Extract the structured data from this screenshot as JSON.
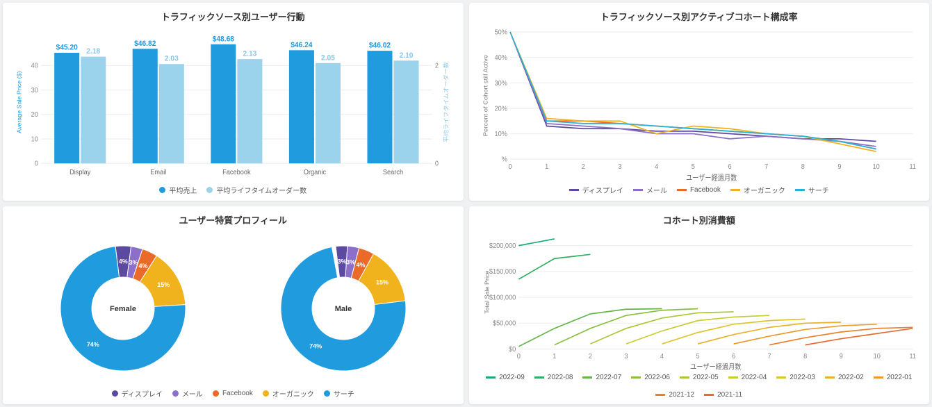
{
  "card1": {
    "title": "トラフィックソース別ユーザー行動",
    "type": "bar",
    "y1_label": "Average Sale Price ($)",
    "y2_label": "平均ライフタイムオーダー数",
    "y1_ticks": [
      0,
      10,
      20,
      30,
      40
    ],
    "y2_ticks": [
      0,
      2
    ],
    "y1_max": 50,
    "y2_max": 2.5,
    "categories": [
      "Display",
      "Email",
      "Facebook",
      "Organic",
      "Search"
    ],
    "series1": {
      "label": "平均売上",
      "color": "#1f9bde",
      "values": [
        45.2,
        46.82,
        48.68,
        46.24,
        46.02
      ],
      "value_labels": [
        "$45.20",
        "$46.82",
        "$48.68",
        "$46.24",
        "$46.02"
      ]
    },
    "series2": {
      "label": "平均ライフタイムオーダー数",
      "color": "#9cd3ec",
      "values": [
        2.18,
        2.03,
        2.13,
        2.05,
        2.1
      ],
      "value_labels": [
        "2.18",
        "2.03",
        "2.13",
        "2.05",
        "2.10"
      ]
    }
  },
  "card2": {
    "title": "トラフィックソース別アクティブコホート構成率",
    "type": "line",
    "y_label": "Percent of Cohort still Active",
    "x_label": "ユーザー経過月数",
    "y_ticks": [
      "%",
      "10%",
      "20%",
      "30%",
      "40%",
      "50%"
    ],
    "y_tick_vals": [
      0,
      10,
      20,
      30,
      40,
      50
    ],
    "x_ticks": [
      0,
      1,
      2,
      3,
      4,
      5,
      6,
      7,
      8,
      9,
      10,
      11
    ],
    "y_max": 50,
    "x_max": 11,
    "series": [
      {
        "label": "ディスプレイ",
        "color": "#5b4a9f",
        "values": [
          50,
          13,
          12,
          12,
          11,
          11,
          10,
          9,
          8,
          8,
          7,
          null
        ]
      },
      {
        "label": "メール",
        "color": "#8b6fc9",
        "values": [
          50,
          14,
          13,
          12,
          10,
          10,
          8,
          9,
          8,
          7,
          5,
          null
        ]
      },
      {
        "label": "Facebook",
        "color": "#ea6a2a",
        "values": [
          50,
          15,
          15,
          14,
          13,
          12,
          11,
          10,
          9,
          7,
          4,
          null
        ]
      },
      {
        "label": "オーガニック",
        "color": "#f0b31e",
        "values": [
          50,
          16,
          15,
          15,
          10,
          13,
          12,
          10,
          9,
          6,
          3,
          null
        ]
      },
      {
        "label": "サーチ",
        "color": "#26b3d6",
        "values": [
          50,
          15,
          14,
          14,
          13,
          12,
          11,
          10,
          9,
          7,
          4,
          null
        ]
      }
    ]
  },
  "card3": {
    "title": "ユーザー特質プロフィール",
    "type": "donut",
    "legend_labels": [
      "ディスプレイ",
      "メール",
      "Facebook",
      "オーガニック",
      "サーチ"
    ],
    "legend_colors": [
      "#5b4a9f",
      "#8b6fc9",
      "#ea6a2a",
      "#f0b31e",
      "#1f9bde"
    ],
    "donuts": [
      {
        "center": "Female",
        "slices": [
          {
            "pct": 4,
            "label": "4%",
            "color": "#5b4a9f"
          },
          {
            "pct": 3,
            "label": "3%",
            "color": "#8b6fc9"
          },
          {
            "pct": 4,
            "label": "4%",
            "color": "#ea6a2a"
          },
          {
            "pct": 15,
            "label": "15%",
            "color": "#f0b31e"
          },
          {
            "pct": 74,
            "label": "74%",
            "color": "#1f9bde"
          }
        ]
      },
      {
        "center": "Male",
        "slices": [
          {
            "pct": 3,
            "label": "3%",
            "color": "#5b4a9f"
          },
          {
            "pct": 3,
            "label": "3%",
            "color": "#8b6fc9"
          },
          {
            "pct": 4,
            "label": "4%",
            "color": "#ea6a2a"
          },
          {
            "pct": 15,
            "label": "15%",
            "color": "#f0b31e"
          },
          {
            "pct": 74,
            "label": "74%",
            "color": "#1f9bde"
          }
        ]
      }
    ]
  },
  "card4": {
    "title": "コホート別消費額",
    "type": "line",
    "y_label": "Total Sale Price",
    "x_label": "ユーザー経過月数",
    "y_ticks": [
      "$0",
      "$50,000",
      "$100,000",
      "$150,000",
      "$200,000"
    ],
    "y_tick_vals": [
      0,
      50000,
      100000,
      150000,
      200000
    ],
    "y_max": 220000,
    "x_ticks": [
      0,
      1,
      2,
      3,
      4,
      5,
      6,
      7,
      8,
      9,
      10,
      11
    ],
    "x_max": 11,
    "series": [
      {
        "label": "2022-09",
        "color": "#1aa877",
        "values": [
          [
            0,
            200000
          ],
          [
            1,
            213000
          ]
        ]
      },
      {
        "label": "2022-08",
        "color": "#2fad60",
        "values": [
          [
            0,
            135000
          ],
          [
            1,
            175000
          ],
          [
            2,
            183000
          ]
        ]
      },
      {
        "label": "2022-07",
        "color": "#64b548",
        "values": [
          [
            0,
            5000
          ],
          [
            1,
            40000
          ],
          [
            2,
            68000
          ],
          [
            3,
            77000
          ],
          [
            4,
            78000
          ]
        ]
      },
      {
        "label": "2022-06",
        "color": "#88bf3c",
        "values": [
          [
            1,
            8000
          ],
          [
            2,
            40000
          ],
          [
            3,
            65000
          ],
          [
            4,
            75000
          ],
          [
            5,
            78000
          ]
        ]
      },
      {
        "label": "2022-05",
        "color": "#a9c633",
        "values": [
          [
            2,
            10000
          ],
          [
            3,
            40000
          ],
          [
            4,
            60000
          ],
          [
            5,
            70000
          ],
          [
            6,
            72000
          ]
        ]
      },
      {
        "label": "2022-04",
        "color": "#c7cb2e",
        "values": [
          [
            3,
            10000
          ],
          [
            4,
            35000
          ],
          [
            5,
            55000
          ],
          [
            6,
            62000
          ],
          [
            7,
            65000
          ]
        ]
      },
      {
        "label": "2022-03",
        "color": "#ddc42a",
        "values": [
          [
            4,
            10000
          ],
          [
            5,
            32000
          ],
          [
            6,
            48000
          ],
          [
            7,
            55000
          ],
          [
            8,
            58000
          ]
        ]
      },
      {
        "label": "2022-02",
        "color": "#e7b128",
        "values": [
          [
            5,
            10000
          ],
          [
            6,
            28000
          ],
          [
            7,
            42000
          ],
          [
            8,
            50000
          ],
          [
            9,
            52000
          ]
        ]
      },
      {
        "label": "2022-01",
        "color": "#ea9b2b",
        "values": [
          [
            6,
            10000
          ],
          [
            7,
            25000
          ],
          [
            8,
            38000
          ],
          [
            9,
            45000
          ],
          [
            10,
            48000
          ]
        ]
      },
      {
        "label": "2021-12",
        "color": "#e9822f",
        "values": [
          [
            7,
            8000
          ],
          [
            8,
            22000
          ],
          [
            9,
            33000
          ],
          [
            10,
            40000
          ],
          [
            11,
            42000
          ]
        ]
      },
      {
        "label": "2021-11",
        "color": "#e66a33",
        "values": [
          [
            8,
            8000
          ],
          [
            9,
            20000
          ],
          [
            10,
            30000
          ],
          [
            11,
            40000
          ]
        ]
      }
    ]
  }
}
